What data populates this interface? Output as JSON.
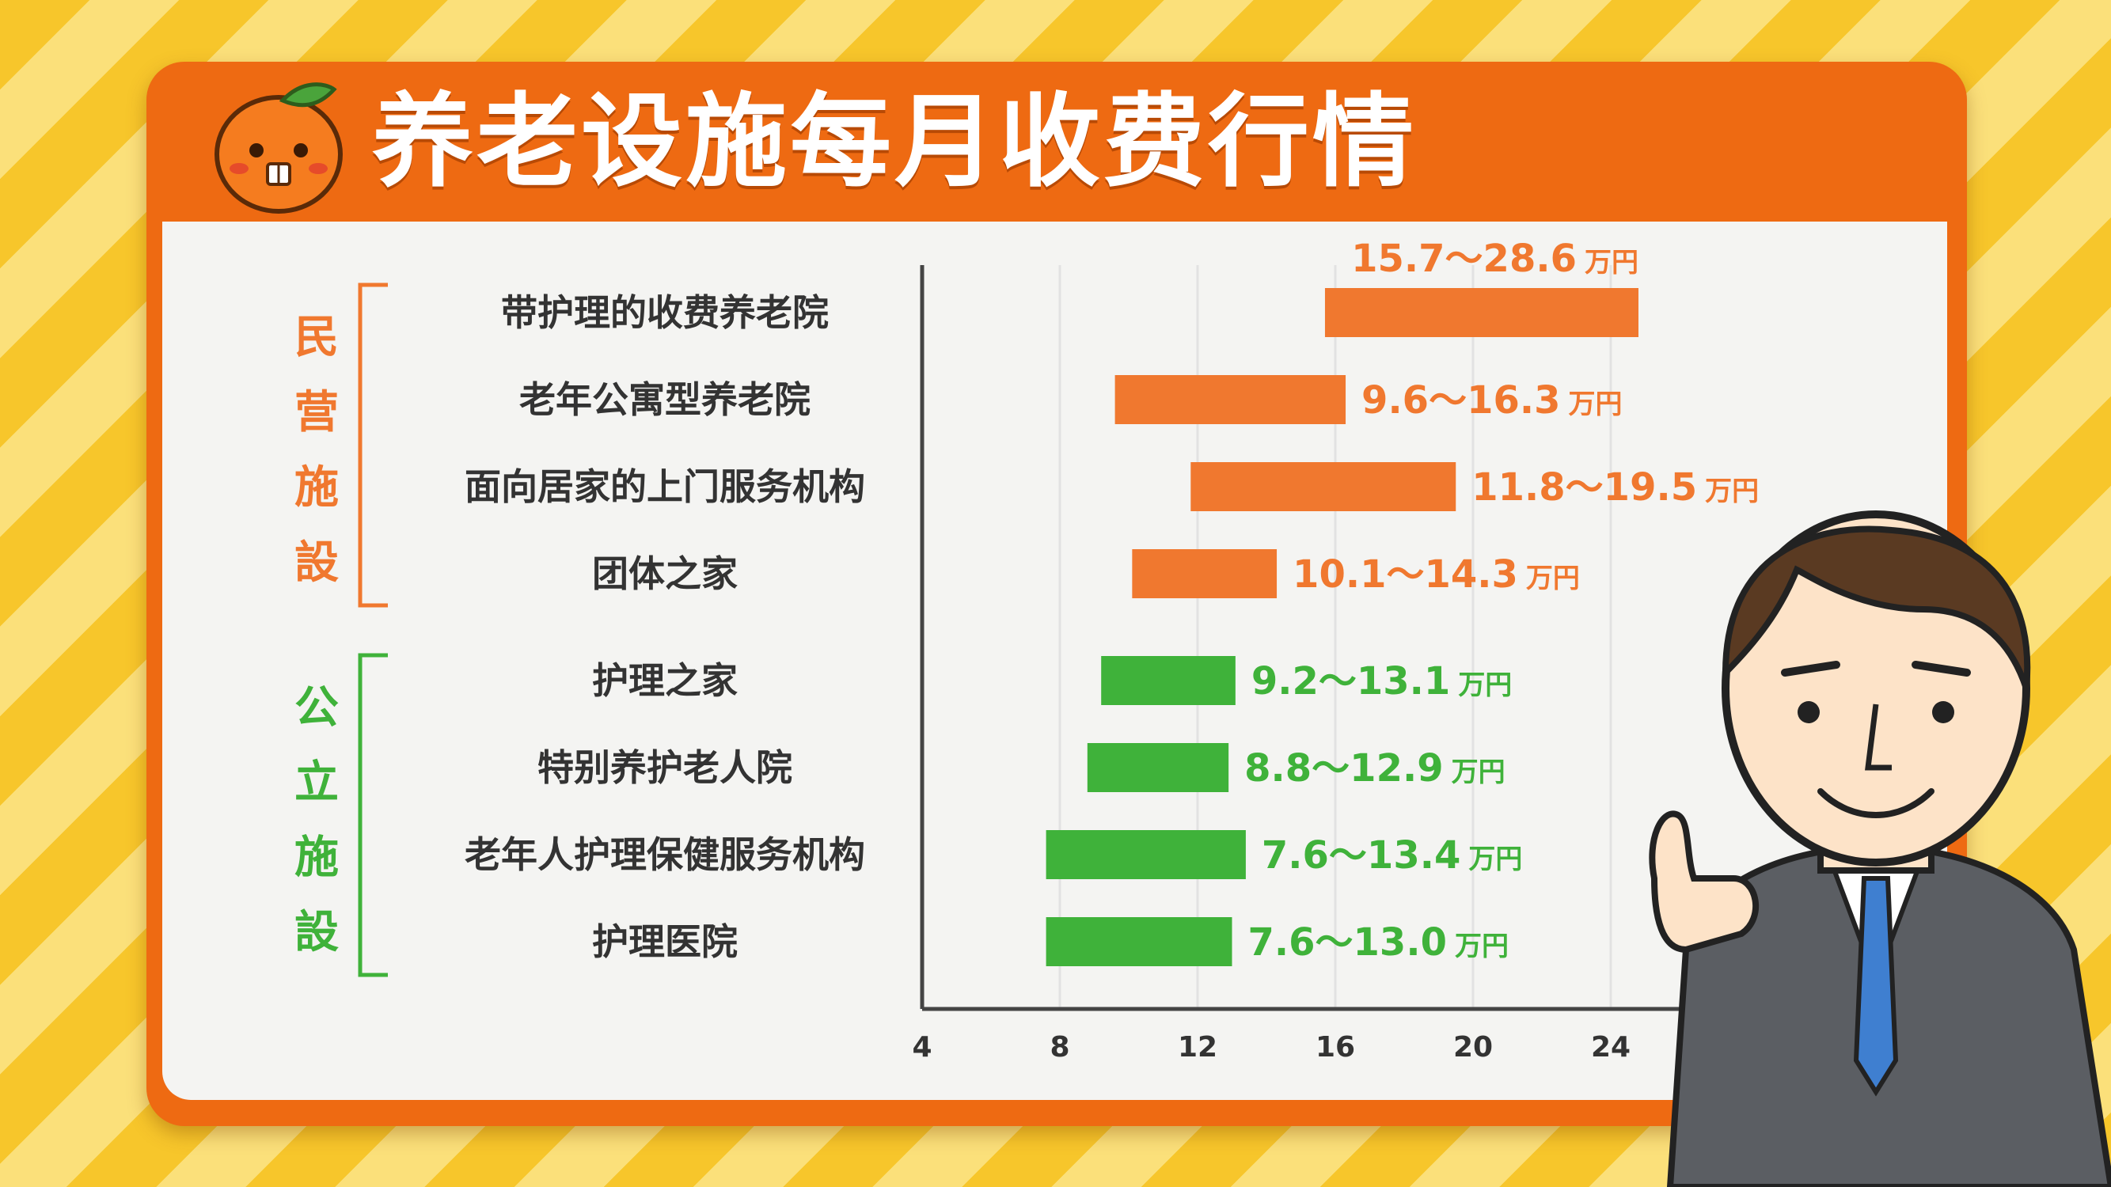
{
  "title": "养老设施每月收费行情",
  "colors": {
    "orange": "#f0782f",
    "green": "#3fb23a",
    "title_bg": "#ee6a12"
  },
  "icons": {
    "mascot": "orange-mascot-icon",
    "person": "businessman-illustration"
  },
  "chart_data": {
    "type": "bar",
    "orientation": "horizontal-range",
    "title": "养老设施每月收费行情",
    "xlabel": "",
    "ylabel": "",
    "xlim": [
      4,
      26
    ],
    "xticks": [
      4,
      8,
      12,
      16,
      20,
      24
    ],
    "unit": "万円",
    "grid": true,
    "groups": [
      {
        "name": "民营施設",
        "color": "#f0782f",
        "items": [
          {
            "category": "带护理的收费养老院",
            "low": 15.7,
            "high": 28.6,
            "label": "15.7～28.6"
          },
          {
            "category": "老年公寓型养老院",
            "low": 9.6,
            "high": 16.3,
            "label": "9.6～16.3"
          },
          {
            "category": "面向居家的上门服务机构",
            "low": 11.8,
            "high": 19.5,
            "label": "11.8～19.5"
          },
          {
            "category": "团体之家",
            "low": 10.1,
            "high": 14.3,
            "label": "10.1～14.3"
          }
        ]
      },
      {
        "name": "公立施設",
        "color": "#3fb23a",
        "items": [
          {
            "category": "护理之家",
            "low": 9.2,
            "high": 13.1,
            "label": "9.2～13.1"
          },
          {
            "category": "特别养护老人院",
            "low": 8.8,
            "high": 12.9,
            "label": "8.8～12.9"
          },
          {
            "category": "老年人护理保健服务机构",
            "low": 7.6,
            "high": 13.4,
            "label": "7.6～13.4"
          },
          {
            "category": "护理医院",
            "low": 7.6,
            "high": 13.0,
            "label": "7.6～13.0"
          }
        ]
      }
    ]
  }
}
